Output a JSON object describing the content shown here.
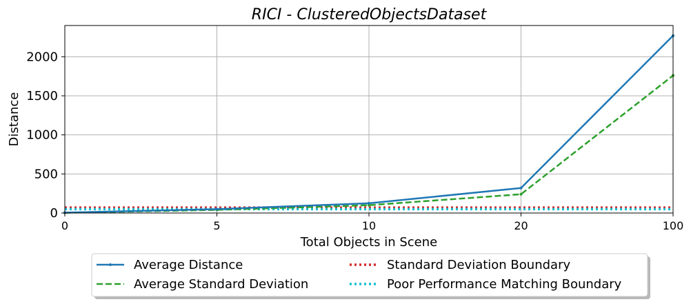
{
  "chart_data": {
    "type": "line",
    "title": "RICI - ClusteredObjectsDataset",
    "xlabel": "Total Objects in Scene",
    "ylabel": "Distance",
    "categories": [
      "0",
      "5",
      "10",
      "20",
      "100"
    ],
    "yticks": [
      "0",
      "500",
      "1000",
      "1500",
      "2000"
    ],
    "ylim": [
      0,
      2400
    ],
    "grid": true,
    "legend_position": "bottom-center",
    "series": [
      {
        "name": "Average Distance",
        "values": [
          5,
          50,
          125,
          320,
          2270
        ],
        "color": "#1f77b4",
        "style": "solid-marker"
      },
      {
        "name": "Average Standard Deviation",
        "values": [
          3,
          40,
          100,
          240,
          1760
        ],
        "color": "#2ca02c",
        "style": "dashed"
      },
      {
        "name": "Standard Deviation Boundary",
        "values": [
          70,
          70,
          70,
          70,
          70
        ],
        "color": "#d62728",
        "style": "dotted"
      },
      {
        "name": "Poor Performance Matching Boundary",
        "values": [
          50,
          50,
          50,
          50,
          50
        ],
        "color": "#17becf",
        "style": "dotted"
      }
    ]
  }
}
